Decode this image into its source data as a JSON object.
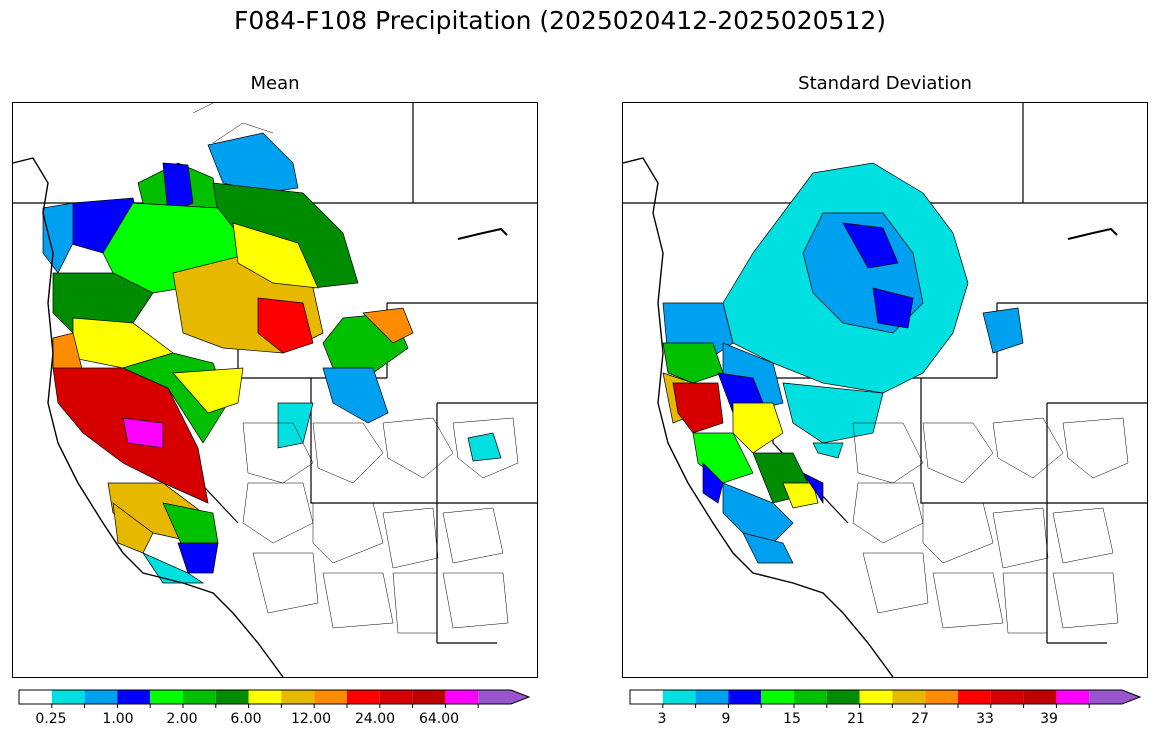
{
  "title": "F084-F108 Precipitation (2025020412-2025020512)",
  "panels": [
    {
      "id": "mean",
      "title": "Mean",
      "colorbar": {
        "colors": [
          "#ffffff",
          "#00e0e0",
          "#00a0f0",
          "#0000ff",
          "#00ff00",
          "#00c000",
          "#008c00",
          "#ffff00",
          "#e6b800",
          "#ff8c00",
          "#ff0000",
          "#d60000",
          "#c00000",
          "#ff00ff",
          "#9955cc"
        ],
        "tick_labels": [
          "0.25",
          "1.00",
          "2.00",
          "6.00",
          "12.00",
          "24.00",
          "64.00"
        ]
      }
    },
    {
      "id": "stddev",
      "title": "Standard Deviation",
      "colorbar": {
        "colors": [
          "#ffffff",
          "#00e0e0",
          "#00a0f0",
          "#0000ff",
          "#00ff00",
          "#00c000",
          "#008c00",
          "#ffff00",
          "#e6b800",
          "#ff8c00",
          "#ff0000",
          "#d60000",
          "#c00000",
          "#ff00ff",
          "#9955cc"
        ],
        "tick_labels": [
          "3",
          "9",
          "15",
          "21",
          "27",
          "33",
          "39"
        ]
      }
    }
  ]
}
